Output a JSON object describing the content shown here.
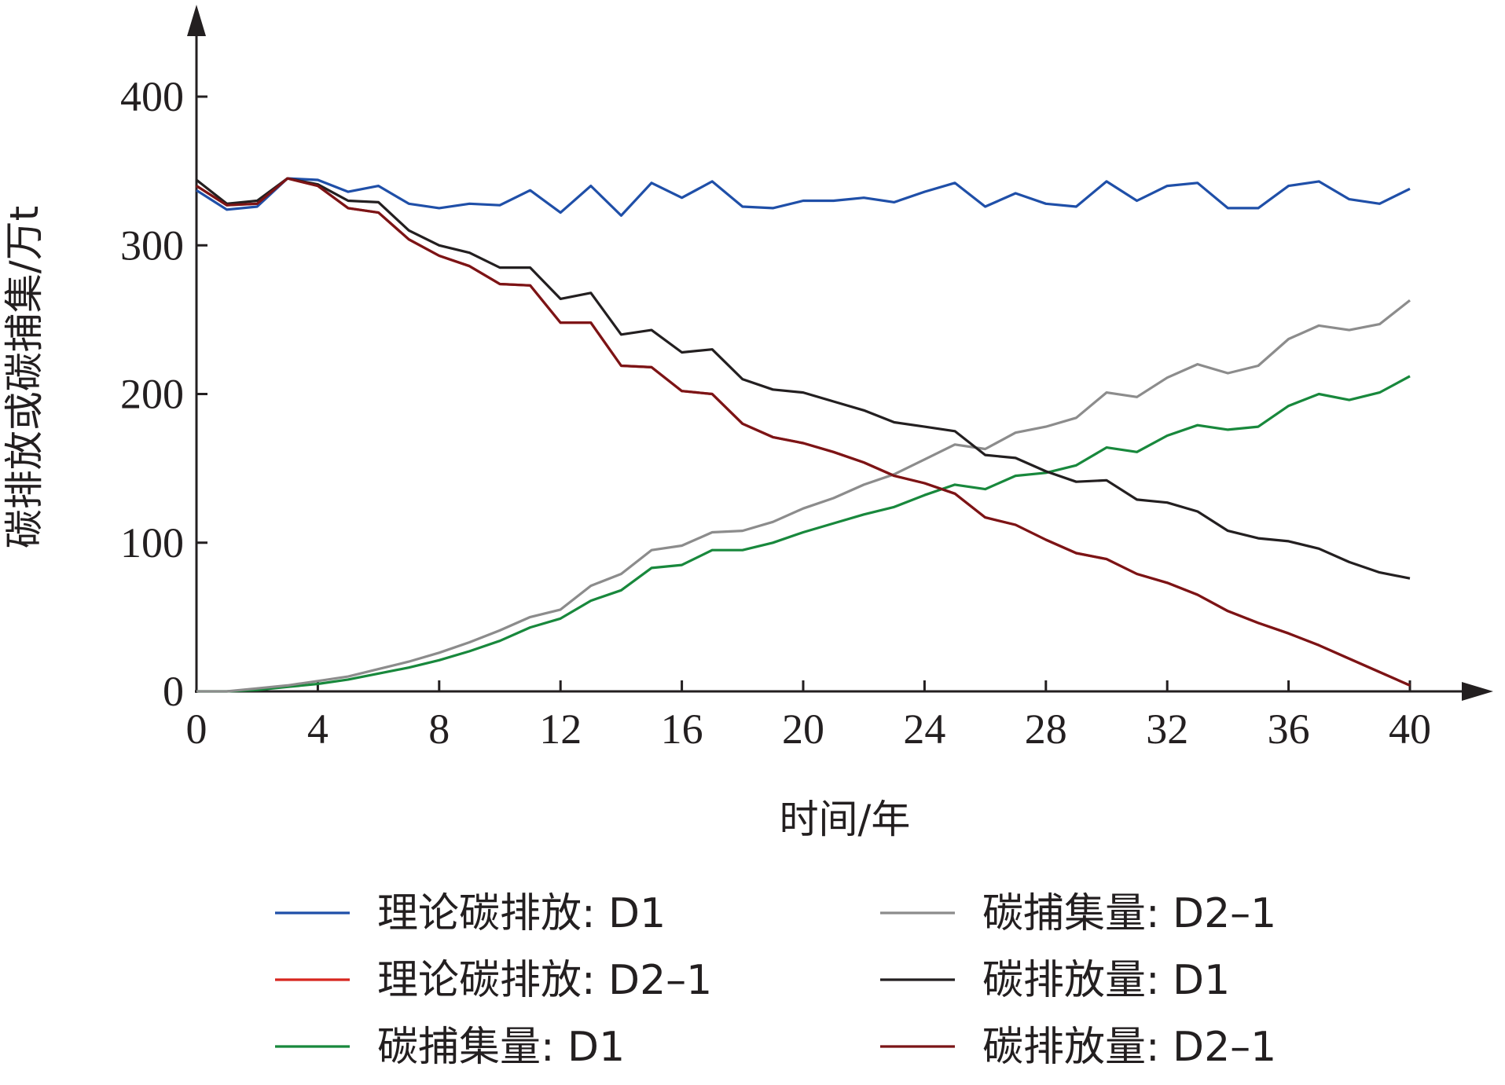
{
  "chart_data": {
    "type": "line",
    "title": "",
    "xlabel": "时间/年",
    "ylabel": "碳排放或碳捕集/万t",
    "xlim": [
      0,
      40
    ],
    "ylim": [
      0,
      400
    ],
    "xticks": [
      0,
      4,
      8,
      12,
      16,
      20,
      24,
      28,
      32,
      36,
      40
    ],
    "yticks": [
      0,
      100,
      200,
      300,
      400
    ],
    "grid": false,
    "legend_position": "bottom",
    "x": [
      0,
      1,
      2,
      3,
      4,
      5,
      6,
      7,
      8,
      9,
      10,
      11,
      12,
      13,
      14,
      15,
      16,
      17,
      18,
      19,
      20,
      21,
      22,
      23,
      24,
      25,
      26,
      27,
      28,
      29,
      30,
      31,
      32,
      33,
      34,
      35,
      36,
      37,
      38,
      39,
      40
    ],
    "series": [
      {
        "name": "理论碳排放: D1",
        "color": "#1f4fa8",
        "values": [
          337,
          324,
          326,
          345,
          344,
          336,
          340,
          328,
          325,
          328,
          327,
          337,
          322,
          340,
          320,
          342,
          332,
          343,
          326,
          325,
          330,
          330,
          332,
          329,
          336,
          342,
          326,
          335,
          328,
          326,
          343,
          330,
          340,
          342,
          325,
          325,
          340,
          343,
          331,
          328,
          338
        ]
      },
      {
        "name": "理论碳排放: D2–1",
        "color": "#d7261e",
        "values": [
          340,
          327,
          328,
          345,
          340,
          325,
          322,
          304,
          293,
          286,
          274,
          273,
          248,
          248,
          219,
          218,
          202,
          200,
          180,
          171,
          167,
          161,
          154,
          145,
          140,
          133,
          117,
          112,
          102,
          93,
          89,
          79,
          73,
          65,
          54,
          46,
          39,
          31,
          22,
          13,
          4
        ]
      },
      {
        "name": "碳捕集量: D1",
        "color": "#18883c",
        "values": [
          0,
          0,
          1,
          3,
          5,
          8,
          12,
          16,
          21,
          27,
          34,
          43,
          49,
          61,
          68,
          83,
          85,
          95,
          95,
          100,
          107,
          113,
          119,
          124,
          132,
          139,
          136,
          145,
          147,
          152,
          164,
          161,
          172,
          179,
          176,
          178,
          192,
          200,
          196,
          201,
          212
        ]
      },
      {
        "name": "碳捕集量: D2–1",
        "color": "#8c8c8c",
        "values": [
          0,
          0,
          2,
          4,
          7,
          10,
          15,
          20,
          26,
          33,
          41,
          50,
          55,
          71,
          79,
          95,
          98,
          107,
          108,
          114,
          123,
          130,
          139,
          146,
          156,
          166,
          163,
          174,
          178,
          184,
          201,
          198,
          211,
          220,
          214,
          219,
          237,
          246,
          243,
          247,
          263
        ]
      },
      {
        "name": "碳排放量: D1",
        "color": "#231f20",
        "values": [
          344,
          328,
          330,
          345,
          341,
          330,
          329,
          310,
          300,
          295,
          285,
          285,
          264,
          268,
          240,
          243,
          228,
          230,
          210,
          203,
          201,
          195,
          189,
          181,
          178,
          175,
          159,
          157,
          148,
          141,
          142,
          129,
          127,
          121,
          108,
          103,
          101,
          96,
          87,
          80,
          76
        ]
      },
      {
        "name": "碳排放量: D2–1",
        "color": "#7b1416",
        "values": [
          340,
          327,
          328,
          345,
          340,
          325,
          322,
          304,
          293,
          286,
          274,
          273,
          248,
          248,
          219,
          218,
          202,
          200,
          180,
          171,
          167,
          161,
          154,
          145,
          140,
          133,
          117,
          112,
          102,
          93,
          89,
          79,
          73,
          65,
          54,
          46,
          39,
          31,
          22,
          13,
          4
        ]
      }
    ]
  }
}
